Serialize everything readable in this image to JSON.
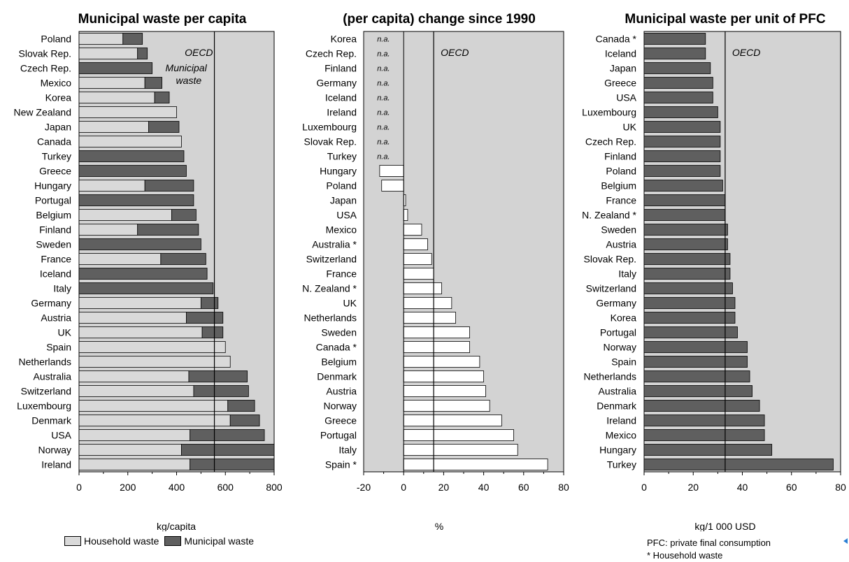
{
  "chart_data": [
    {
      "type": "bar",
      "stacked": true,
      "orientation": "horizontal",
      "title": "Municipal waste per capita",
      "xlabel": "kg/capita",
      "xlim": [
        0,
        800
      ],
      "xticks": [
        0,
        200,
        400,
        600,
        800
      ],
      "reference_line": {
        "label_line1": "OECD",
        "label_line2": "Municipal",
        "label_line3": "waste",
        "value": 555
      },
      "categories": [
        "Poland",
        "Slovak Rep.",
        "Czech Rep.",
        "Mexico",
        "Korea",
        "New Zealand",
        "Japan",
        "Canada",
        "Turkey",
        "Greece",
        "Hungary",
        "Portugal",
        "Belgium",
        "Finland",
        "Sweden",
        "France",
        "Iceland",
        "Italy",
        "Germany",
        "Austria",
        "UK",
        "Spain",
        "Netherlands",
        "Australia",
        "Switzerland",
        "Luxembourg",
        "Denmark",
        "USA",
        "Norway",
        "Ireland"
      ],
      "series": [
        {
          "name": "Household waste",
          "color": "#d9d9d9",
          "values": [
            180,
            240,
            0,
            270,
            310,
            400,
            285,
            420,
            0,
            0,
            270,
            0,
            380,
            240,
            0,
            335,
            0,
            0,
            500,
            440,
            505,
            600,
            620,
            450,
            470,
            610,
            620,
            455,
            420,
            455
          ]
        },
        {
          "name": "Municipal waste",
          "color": "#5f5f5f",
          "values": [
            80,
            40,
            300,
            70,
            60,
            0,
            125,
            0,
            430,
            440,
            200,
            470,
            100,
            250,
            500,
            185,
            525,
            550,
            70,
            150,
            85,
            0,
            0,
            240,
            225,
            110,
            120,
            305,
            380,
            345
          ]
        }
      ]
    },
    {
      "type": "bar",
      "orientation": "horizontal",
      "title": "(per capita) change since 1990",
      "xlabel": "%",
      "xlim": [
        -20,
        80
      ],
      "xticks": [
        -20,
        0,
        20,
        40,
        60,
        80
      ],
      "reference_line": {
        "label": "OECD",
        "value": 15
      },
      "categories": [
        "Korea",
        "Czech Rep.",
        "Finland",
        "Germany",
        "Iceland",
        "Ireland",
        "Luxembourg",
        "Slovak Rep.",
        "Turkey",
        "Hungary",
        "Poland",
        "Japan",
        "USA",
        "Mexico",
        "Australia *",
        "Switzerland",
        "France",
        "N. Zealand *",
        "UK",
        "Netherlands",
        "Sweden",
        "Canada *",
        "Belgium",
        "Denmark",
        "Austria",
        "Norway",
        "Greece",
        "Portugal",
        "Italy",
        "Spain *"
      ],
      "na_label": "n.a.",
      "values": [
        null,
        null,
        null,
        null,
        null,
        null,
        null,
        null,
        null,
        -12,
        -11,
        1,
        2,
        9,
        12,
        14,
        15,
        19,
        24,
        26,
        33,
        33,
        38,
        40,
        41,
        43,
        49,
        55,
        57,
        72
      ]
    },
    {
      "type": "bar",
      "orientation": "horizontal",
      "title": "Municipal waste per unit of PFC",
      "xlabel": "kg/1 000 USD",
      "xlim": [
        0,
        80
      ],
      "xticks": [
        0,
        20,
        40,
        60,
        80
      ],
      "reference_line": {
        "label": "OECD",
        "value": 33
      },
      "categories": [
        "Canada *",
        "Iceland",
        "Japan",
        "Greece",
        "USA",
        "Luxembourg",
        "UK",
        "Czech Rep.",
        "Finland",
        "Poland",
        "Belgium",
        "France",
        "N. Zealand *",
        "Sweden",
        "Austria",
        "Slovak Rep.",
        "Italy",
        "Switzerland",
        "Germany",
        "Korea",
        "Portugal",
        "Norway",
        "Spain",
        "Netherlands",
        "Australia",
        "Denmark",
        "Ireland",
        "Mexico",
        "Hungary",
        "Turkey"
      ],
      "values": [
        25,
        25,
        27,
        28,
        28,
        30,
        31,
        31,
        31,
        31,
        32,
        33,
        33,
        34,
        34,
        35,
        35,
        36,
        37,
        37,
        38,
        42,
        42,
        43,
        44,
        47,
        49,
        49,
        52,
        77
      ]
    }
  ],
  "legend": {
    "household": {
      "label": "Household waste",
      "color": "#d9d9d9"
    },
    "municipal": {
      "label": "Municipal waste",
      "color": "#5f5f5f"
    }
  },
  "notes": {
    "pfc": "PFC: private final consumption",
    "household_note": "* Household waste"
  },
  "colors": {
    "plot_bg": "#d3d3d3",
    "bar_white": "#ffffff",
    "bar_dark": "#5f5f5f",
    "bar_light": "#d9d9d9"
  }
}
